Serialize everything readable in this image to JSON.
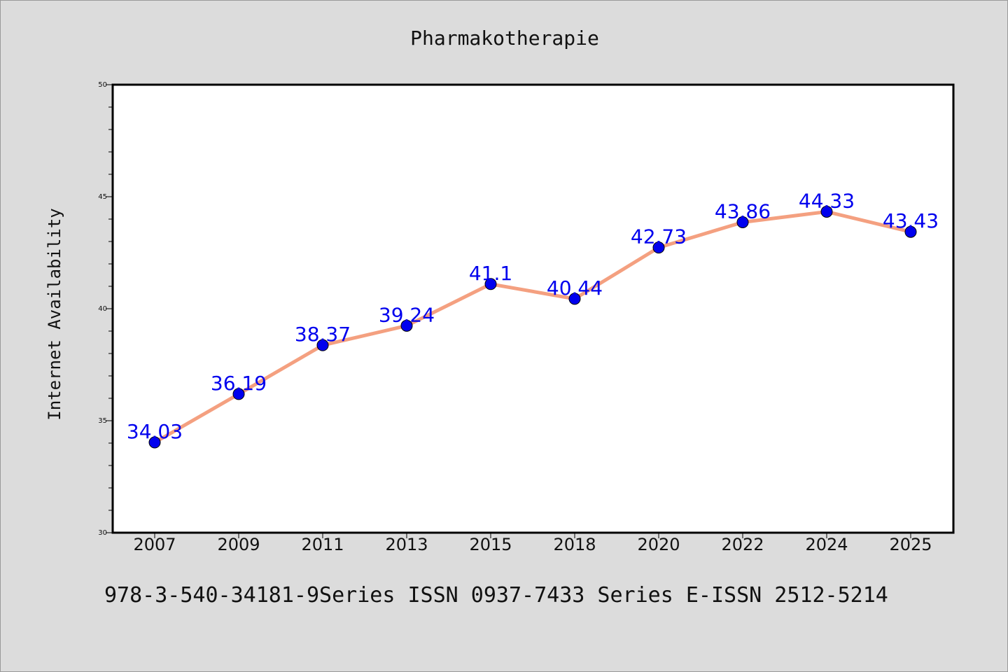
{
  "chart_data": {
    "type": "line",
    "title": "Pharmakotherapie",
    "ylabel": "Internet Availability",
    "xlabel": "",
    "categories": [
      "2007",
      "2009",
      "2011",
      "2013",
      "2015",
      "2018",
      "2020",
      "2022",
      "2024",
      "2025"
    ],
    "values": [
      34.03,
      36.19,
      38.37,
      39.24,
      41.1,
      40.44,
      42.73,
      43.86,
      44.33,
      43.43
    ],
    "data_labels": [
      "34.03",
      "36.19",
      "38.37",
      "39.24",
      "41.1",
      "40.44",
      "42.73",
      "43.86",
      "44.33",
      "43.43"
    ],
    "ylim": [
      30,
      50
    ],
    "y_ticks": [
      "30",
      "35",
      "40",
      "45",
      "50"
    ],
    "grid": false,
    "line_color": "#f4a080",
    "marker_color": "#0000ee",
    "label_color": "#0000ee"
  },
  "footer": {
    "text": "978-3-540-34181-9Series ISSN 0937-7433 Series E-ISSN 2512-5214"
  }
}
